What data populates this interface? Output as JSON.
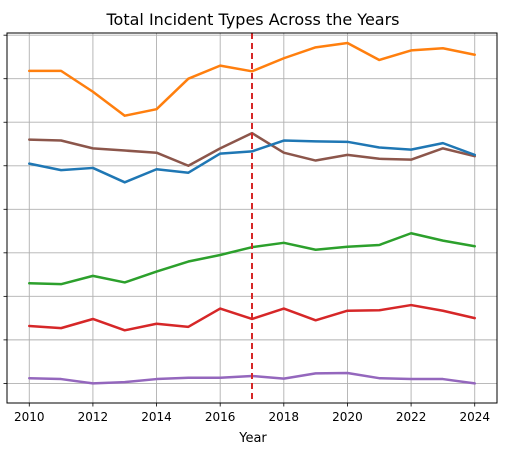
{
  "chart_data": {
    "type": "line",
    "title": "Total Incident Types Across the Years",
    "xlabel": "Year",
    "ylabel": "",
    "x": [
      2010,
      2011,
      2012,
      2013,
      2014,
      2015,
      2016,
      2017,
      2018,
      2019,
      2020,
      2021,
      2022,
      2023,
      2024
    ],
    "x_ticks": [
      2010,
      2012,
      2014,
      2016,
      2018,
      2020,
      2022,
      2024
    ],
    "xlim": [
      2009.3,
      2024.7
    ],
    "ylim": [
      -0.45,
      8.05
    ],
    "y_grid": [
      0,
      1,
      2,
      3,
      4,
      5,
      6,
      7,
      8
    ],
    "grid": true,
    "series": [
      {
        "color": "#ff7f0e",
        "values": [
          7.18,
          7.18,
          6.7,
          6.15,
          6.3,
          7.0,
          7.3,
          7.17,
          7.47,
          7.72,
          7.82,
          7.43,
          7.65,
          7.7,
          7.55
        ]
      },
      {
        "color": "#8c564b",
        "values": [
          5.6,
          5.58,
          5.4,
          5.35,
          5.3,
          5.0,
          5.4,
          5.75,
          5.3,
          5.12,
          5.25,
          5.16,
          5.14,
          5.4,
          5.22
        ]
      },
      {
        "color": "#1f77b4",
        "values": [
          5.05,
          4.9,
          4.95,
          4.62,
          4.92,
          4.84,
          5.28,
          5.33,
          5.58,
          5.56,
          5.55,
          5.42,
          5.37,
          5.52,
          5.25
        ]
      },
      {
        "color": "#2ca02c",
        "values": [
          2.3,
          2.28,
          2.47,
          2.32,
          2.57,
          2.8,
          2.95,
          3.13,
          3.23,
          3.07,
          3.14,
          3.18,
          3.45,
          3.28,
          3.15
        ]
      },
      {
        "color": "#d62728",
        "values": [
          1.32,
          1.27,
          1.48,
          1.22,
          1.37,
          1.3,
          1.72,
          1.48,
          1.72,
          1.45,
          1.67,
          1.68,
          1.8,
          1.67,
          1.5
        ]
      },
      {
        "color": "#9467bd",
        "values": [
          0.12,
          0.1,
          0.0,
          0.03,
          0.1,
          0.13,
          0.13,
          0.17,
          0.11,
          0.23,
          0.24,
          0.12,
          0.1,
          0.1,
          0.0
        ]
      }
    ],
    "reference_line": {
      "x": 2017,
      "color": "#d62728",
      "style": "dashed"
    }
  }
}
